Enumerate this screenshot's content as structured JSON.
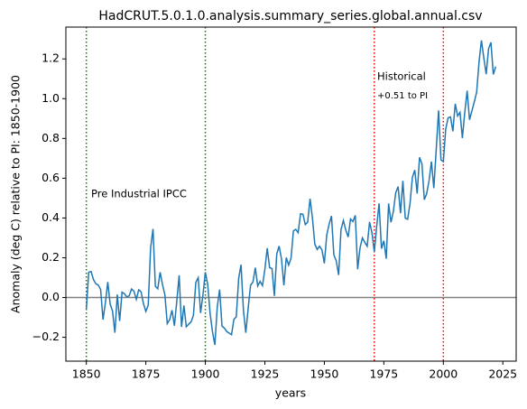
{
  "chart_data": {
    "type": "line",
    "title": "HadCRUT.5.0.1.0.analysis.summary_series.global.annual.csv",
    "x_label": "years",
    "y_label": "Anomaly (deg C) relative to PI: 1850-1900",
    "x": [
      1850,
      1851,
      1852,
      1853,
      1854,
      1855,
      1856,
      1857,
      1858,
      1859,
      1860,
      1861,
      1862,
      1863,
      1864,
      1865,
      1866,
      1867,
      1868,
      1869,
      1870,
      1871,
      1872,
      1873,
      1874,
      1875,
      1876,
      1877,
      1878,
      1879,
      1880,
      1881,
      1882,
      1883,
      1884,
      1885,
      1886,
      1887,
      1888,
      1889,
      1890,
      1891,
      1892,
      1893,
      1894,
      1895,
      1896,
      1897,
      1898,
      1899,
      1900,
      1901,
      1902,
      1903,
      1904,
      1905,
      1906,
      1907,
      1908,
      1909,
      1910,
      1911,
      1912,
      1913,
      1914,
      1915,
      1916,
      1917,
      1918,
      1919,
      1920,
      1921,
      1922,
      1923,
      1924,
      1925,
      1926,
      1927,
      1928,
      1929,
      1930,
      1931,
      1932,
      1933,
      1934,
      1935,
      1936,
      1937,
      1938,
      1939,
      1940,
      1941,
      1942,
      1943,
      1944,
      1945,
      1946,
      1947,
      1948,
      1949,
      1950,
      1951,
      1952,
      1953,
      1954,
      1955,
      1956,
      1957,
      1958,
      1959,
      1960,
      1961,
      1962,
      1963,
      1964,
      1965,
      1966,
      1967,
      1968,
      1969,
      1970,
      1971,
      1972,
      1973,
      1974,
      1975,
      1976,
      1977,
      1978,
      1979,
      1980,
      1981,
      1982,
      1983,
      1984,
      1985,
      1986,
      1987,
      1988,
      1989,
      1990,
      1991,
      1992,
      1993,
      1994,
      1995,
      1996,
      1997,
      1998,
      1999,
      2000,
      2001,
      2002,
      2003,
      2004,
      2005,
      2006,
      2007,
      2008,
      2009,
      2010,
      2011,
      2012,
      2013,
      2014,
      2015,
      2016,
      2017,
      2018,
      2019,
      2020,
      2021,
      2022
    ],
    "series": [
      {
        "color": "#1f77b4",
        "values": [
          -0.058,
          0.127,
          0.131,
          0.09,
          0.069,
          0.063,
          0.04,
          -0.111,
          -0.027,
          0.078,
          -0.033,
          -0.068,
          -0.177,
          0.015,
          -0.118,
          0.027,
          0.019,
          0.003,
          0.009,
          0.043,
          0.032,
          -0.009,
          0.039,
          0.029,
          -0.031,
          -0.07,
          -0.039,
          0.249,
          0.345,
          0.057,
          0.044,
          0.127,
          0.065,
          0.014,
          -0.131,
          -0.111,
          -0.064,
          -0.142,
          -0.019,
          0.112,
          -0.148,
          -0.04,
          -0.147,
          -0.134,
          -0.123,
          -0.089,
          0.076,
          0.1,
          -0.078,
          0.014,
          0.127,
          0.065,
          -0.08,
          -0.172,
          -0.238,
          -0.048,
          0.04,
          -0.144,
          -0.154,
          -0.171,
          -0.179,
          -0.187,
          -0.11,
          -0.097,
          0.096,
          0.165,
          -0.063,
          -0.177,
          -0.053,
          0.062,
          0.078,
          0.15,
          0.058,
          0.081,
          0.06,
          0.141,
          0.248,
          0.15,
          0.146,
          0.008,
          0.218,
          0.259,
          0.194,
          0.061,
          0.201,
          0.163,
          0.197,
          0.335,
          0.343,
          0.326,
          0.421,
          0.419,
          0.367,
          0.379,
          0.497,
          0.399,
          0.268,
          0.242,
          0.258,
          0.239,
          0.172,
          0.313,
          0.369,
          0.41,
          0.214,
          0.185,
          0.113,
          0.342,
          0.387,
          0.34,
          0.304,
          0.395,
          0.382,
          0.413,
          0.142,
          0.25,
          0.3,
          0.277,
          0.258,
          0.38,
          0.326,
          0.229,
          0.359,
          0.473,
          0.246,
          0.286,
          0.195,
          0.473,
          0.378,
          0.433,
          0.527,
          0.558,
          0.424,
          0.587,
          0.399,
          0.394,
          0.473,
          0.605,
          0.641,
          0.523,
          0.705,
          0.672,
          0.492,
          0.522,
          0.588,
          0.684,
          0.55,
          0.741,
          0.941,
          0.692,
          0.683,
          0.847,
          0.904,
          0.908,
          0.836,
          0.974,
          0.913,
          0.931,
          0.802,
          0.931,
          1.04,
          0.894,
          0.938,
          0.984,
          1.033,
          1.185,
          1.293,
          1.206,
          1.123,
          1.251,
          1.283,
          1.122,
          1.161
        ]
      }
    ],
    "xlim": [
      1841.4,
      2030.6
    ],
    "ylim": [
      -0.32,
      1.36
    ],
    "xticks": [
      1850,
      1875,
      1900,
      1925,
      1950,
      1975,
      2000,
      2025
    ],
    "yticks": [
      {
        "value": -0.2,
        "label": "−0.2"
      },
      {
        "value": 0,
        "label": "0.0"
      },
      0.2,
      0.4,
      0.6,
      0.8,
      {
        "value": 1,
        "label": "1.0"
      },
      1.2
    ],
    "hline": {
      "y": 0,
      "color": "#808080"
    },
    "vlines": [
      {
        "x": 1850,
        "color": "green"
      },
      {
        "x": 1900,
        "color": "green"
      },
      {
        "x": 1971,
        "color": "red"
      },
      {
        "x": 2000,
        "color": "red"
      }
    ],
    "annotations": [
      {
        "text": "Pre Industrial IPCC",
        "color": "green"
      },
      {
        "text": "Historical",
        "color": "#d62728"
      },
      {
        "text": "+0.51 to PI",
        "color": "#d62728"
      }
    ]
  }
}
